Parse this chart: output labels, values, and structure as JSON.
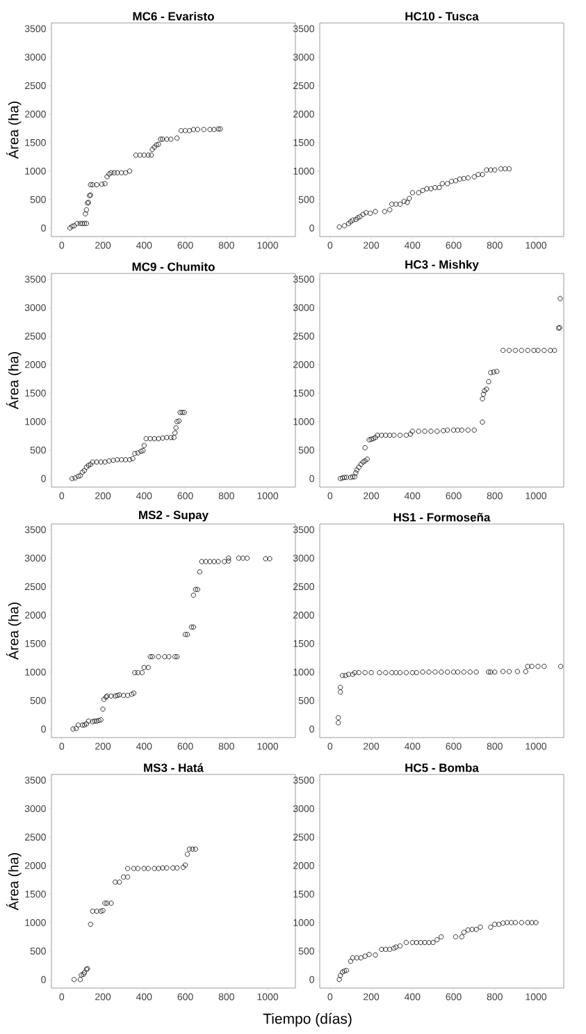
{
  "chart_data": [
    {
      "type": "scatter",
      "title": "MC6 - Evaristo",
      "ylabel": "Área (ha)",
      "xlim": [
        -50,
        1135
      ],
      "ylim": [
        -150,
        3600
      ],
      "xticks": [
        0,
        200,
        400,
        600,
        800,
        1000
      ],
      "yticks": [
        0,
        500,
        1000,
        1500,
        2000,
        2500,
        3000,
        3500
      ],
      "grid": false,
      "marker": "circle",
      "color": "#000000",
      "x": [
        40,
        50,
        60,
        75,
        90,
        100,
        110,
        120,
        115,
        120,
        125,
        130,
        135,
        140,
        140,
        150,
        170,
        195,
        210,
        220,
        230,
        240,
        255,
        270,
        290,
        310,
        330,
        360,
        380,
        400,
        420,
        435,
        440,
        450,
        460,
        470,
        480,
        490,
        510,
        530,
        560,
        580,
        600,
        620,
        640,
        660,
        690,
        720,
        740,
        760,
        770
      ],
      "values": [
        0,
        30,
        40,
        80,
        80,
        80,
        80,
        80,
        250,
        320,
        440,
        450,
        570,
        580,
        760,
        760,
        760,
        770,
        780,
        900,
        950,
        970,
        970,
        970,
        970,
        970,
        1000,
        1280,
        1280,
        1280,
        1280,
        1280,
        1380,
        1420,
        1460,
        1470,
        1560,
        1560,
        1560,
        1560,
        1580,
        1710,
        1710,
        1710,
        1730,
        1730,
        1730,
        1730,
        1730,
        1740,
        1740
      ]
    },
    {
      "type": "scatter",
      "title": "HC10 - Tusca",
      "xlim": [
        -50,
        1135
      ],
      "ylim": [
        -150,
        3600
      ],
      "xticks": [
        0,
        200,
        400,
        600,
        800,
        1000
      ],
      "yticks": [
        0,
        500,
        1000,
        1500,
        2000,
        2500,
        3000,
        3500
      ],
      "grid": false,
      "marker": "circle",
      "color": "#000000",
      "x": [
        45,
        70,
        90,
        100,
        110,
        125,
        135,
        145,
        160,
        175,
        195,
        220,
        265,
        290,
        300,
        320,
        340,
        360,
        375,
        385,
        400,
        430,
        450,
        470,
        490,
        510,
        530,
        545,
        570,
        590,
        610,
        630,
        650,
        670,
        700,
        720,
        740,
        760,
        780,
        800,
        830,
        850,
        870
      ],
      "values": [
        20,
        40,
        80,
        110,
        140,
        150,
        180,
        200,
        240,
        270,
        260,
        290,
        290,
        320,
        420,
        420,
        420,
        470,
        450,
        520,
        620,
        620,
        660,
        690,
        690,
        710,
        710,
        780,
        780,
        820,
        830,
        860,
        870,
        880,
        900,
        940,
        940,
        1020,
        1020,
        1020,
        1040,
        1040,
        1040
      ]
    },
    {
      "type": "scatter",
      "title": "MC9 - Chumito",
      "ylabel": "Área (ha)",
      "xlim": [
        -50,
        1135
      ],
      "ylim": [
        -150,
        3600
      ],
      "xticks": [
        0,
        200,
        400,
        600,
        800,
        1000
      ],
      "yticks": [
        0,
        500,
        1000,
        1500,
        2000,
        2500,
        3000,
        3500
      ],
      "grid": false,
      "marker": "circle",
      "color": "#000000",
      "x": [
        50,
        65,
        80,
        90,
        100,
        110,
        120,
        130,
        140,
        150,
        170,
        190,
        210,
        230,
        250,
        270,
        290,
        310,
        330,
        345,
        355,
        370,
        385,
        395,
        400,
        410,
        430,
        450,
        470,
        490,
        510,
        530,
        545,
        550,
        555,
        560,
        570,
        575,
        585,
        595
      ],
      "values": [
        0,
        10,
        40,
        50,
        110,
        140,
        200,
        230,
        250,
        290,
        290,
        290,
        290,
        310,
        320,
        330,
        330,
        330,
        330,
        350,
        440,
        450,
        480,
        490,
        580,
        700,
        700,
        700,
        700,
        710,
        720,
        720,
        720,
        800,
        890,
        1000,
        1010,
        1160,
        1160,
        1160
      ]
    },
    {
      "type": "scatter",
      "title": "HC3 - Mishky",
      "xlim": [
        -50,
        1135
      ],
      "ylim": [
        -150,
        3600
      ],
      "xticks": [
        0,
        200,
        400,
        600,
        800,
        1000
      ],
      "yticks": [
        0,
        500,
        1000,
        1500,
        2000,
        2500,
        3000,
        3500
      ],
      "grid": false,
      "marker": "circle",
      "color": "#000000",
      "x": [
        50,
        60,
        70,
        80,
        100,
        110,
        120,
        125,
        130,
        140,
        150,
        160,
        170,
        180,
        170,
        190,
        200,
        210,
        220,
        230,
        250,
        270,
        290,
        310,
        340,
        370,
        390,
        400,
        430,
        460,
        490,
        520,
        550,
        570,
        600,
        620,
        640,
        670,
        700,
        740,
        740,
        745,
        750,
        760,
        770,
        780,
        795,
        810,
        840,
        870,
        900,
        930,
        960,
        990,
        1010,
        1040,
        1070,
        1090,
        1110,
        1115,
        1118
      ],
      "values": [
        0,
        10,
        20,
        20,
        20,
        30,
        30,
        100,
        150,
        200,
        250,
        290,
        310,
        340,
        540,
        680,
        690,
        700,
        720,
        760,
        760,
        760,
        760,
        760,
        760,
        760,
        780,
        830,
        830,
        830,
        830,
        830,
        840,
        850,
        850,
        850,
        850,
        850,
        850,
        990,
        1400,
        1480,
        1540,
        1570,
        1700,
        1860,
        1870,
        1880,
        2250,
        2250,
        2250,
        2250,
        2250,
        2250,
        2250,
        2250,
        2250,
        2250,
        2640,
        2650,
        3160
      ]
    },
    {
      "type": "scatter",
      "title": "MS2 - Supay",
      "ylabel": "Área (ha)",
      "xlim": [
        -50,
        1135
      ],
      "ylim": [
        -150,
        3600
      ],
      "xticks": [
        0,
        200,
        400,
        600,
        800,
        1000
      ],
      "yticks": [
        0,
        500,
        1000,
        1500,
        2000,
        2500,
        3000,
        3500
      ],
      "grid": false,
      "marker": "circle",
      "color": "#000000",
      "x": [
        55,
        70,
        80,
        100,
        110,
        120,
        130,
        150,
        160,
        170,
        180,
        190,
        200,
        205,
        215,
        220,
        240,
        260,
        270,
        280,
        300,
        320,
        340,
        350,
        355,
        370,
        390,
        400,
        420,
        430,
        440,
        470,
        500,
        520,
        550,
        560,
        600,
        610,
        630,
        640,
        640,
        650,
        660,
        670,
        680,
        700,
        720,
        740,
        760,
        790,
        810,
        810,
        860,
        880,
        900,
        990,
        1010
      ],
      "values": [
        0,
        10,
        70,
        70,
        70,
        90,
        140,
        130,
        140,
        140,
        150,
        160,
        350,
        520,
        560,
        580,
        580,
        580,
        590,
        600,
        590,
        590,
        610,
        630,
        990,
        990,
        990,
        1080,
        1080,
        1270,
        1270,
        1270,
        1270,
        1270,
        1270,
        1270,
        1660,
        1660,
        1790,
        1790,
        2350,
        2450,
        2450,
        2760,
        2940,
        2940,
        2940,
        2940,
        2940,
        2940,
        2950,
        3000,
        3000,
        3000,
        3000,
        2990,
        2990
      ]
    },
    {
      "type": "scatter",
      "title": "HS1 - Formoseña",
      "xlim": [
        -50,
        1135
      ],
      "ylim": [
        -150,
        3600
      ],
      "xticks": [
        0,
        200,
        400,
        600,
        800,
        1000
      ],
      "yticks": [
        0,
        500,
        1000,
        1500,
        2000,
        2500,
        3000,
        3500
      ],
      "grid": false,
      "marker": "circle",
      "color": "#000000",
      "x": [
        40,
        40,
        50,
        50,
        60,
        75,
        90,
        110,
        120,
        140,
        170,
        200,
        240,
        270,
        300,
        320,
        340,
        370,
        400,
        420,
        450,
        480,
        510,
        540,
        570,
        600,
        620,
        650,
        680,
        710,
        770,
        780,
        800,
        840,
        870,
        910,
        950,
        960,
        980,
        1010,
        1040,
        1120
      ],
      "values": [
        110,
        200,
        650,
        730,
        940,
        940,
        960,
        960,
        990,
        990,
        990,
        990,
        990,
        990,
        990,
        990,
        990,
        990,
        990,
        990,
        1000,
        1000,
        1000,
        1000,
        1000,
        1000,
        1000,
        1000,
        1000,
        1000,
        1000,
        1000,
        1000,
        1010,
        1010,
        1010,
        1010,
        1100,
        1100,
        1100,
        1100,
        1100
      ]
    },
    {
      "type": "scatter",
      "title": "MS3 - Hatá",
      "ylabel": "Área (ha)",
      "xlabel": "Tiempo (días)",
      "xlim": [
        -50,
        1135
      ],
      "ylim": [
        -150,
        3600
      ],
      "xticks": [
        0,
        200,
        400,
        600,
        800,
        1000
      ],
      "yticks": [
        0,
        500,
        1000,
        1500,
        2000,
        2500,
        3000,
        3500
      ],
      "grid": false,
      "marker": "circle",
      "color": "#000000",
      "x": [
        60,
        90,
        95,
        105,
        110,
        120,
        125,
        140,
        150,
        170,
        190,
        200,
        210,
        220,
        240,
        260,
        280,
        300,
        320,
        320,
        350,
        370,
        400,
        420,
        450,
        470,
        490,
        510,
        540,
        560,
        590,
        600,
        610,
        620,
        635,
        650
      ],
      "values": [
        0,
        0,
        80,
        90,
        120,
        180,
        190,
        970,
        1200,
        1200,
        1200,
        1210,
        1340,
        1340,
        1340,
        1710,
        1710,
        1800,
        1800,
        1950,
        1950,
        1950,
        1950,
        1950,
        1950,
        1950,
        1960,
        1960,
        1960,
        1960,
        1970,
        2010,
        2200,
        2290,
        2290,
        2290
      ]
    },
    {
      "type": "scatter",
      "title": "HC5 - Bomba",
      "xlim": [
        -50,
        1135
      ],
      "ylim": [
        -150,
        3600
      ],
      "xticks": [
        0,
        200,
        400,
        600,
        800,
        1000
      ],
      "yticks": [
        0,
        500,
        1000,
        1500,
        2000,
        2500,
        3000,
        3500
      ],
      "grid": false,
      "marker": "circle",
      "color": "#000000",
      "x": [
        45,
        50,
        60,
        70,
        80,
        100,
        110,
        130,
        150,
        170,
        190,
        220,
        250,
        270,
        290,
        310,
        320,
        340,
        370,
        400,
        420,
        440,
        460,
        480,
        500,
        520,
        540,
        610,
        640,
        650,
        670,
        690,
        710,
        730,
        780,
        800,
        820,
        840,
        860,
        880,
        900,
        930,
        960,
        980,
        1000
      ],
      "values": [
        0,
        70,
        130,
        150,
        160,
        320,
        380,
        380,
        380,
        410,
        440,
        430,
        530,
        530,
        530,
        550,
        570,
        590,
        650,
        650,
        650,
        650,
        650,
        650,
        650,
        700,
        750,
        750,
        750,
        830,
        870,
        880,
        880,
        920,
        920,
        970,
        970,
        990,
        1000,
        1000,
        1000,
        1000,
        1000,
        1000,
        1000
      ]
    }
  ]
}
